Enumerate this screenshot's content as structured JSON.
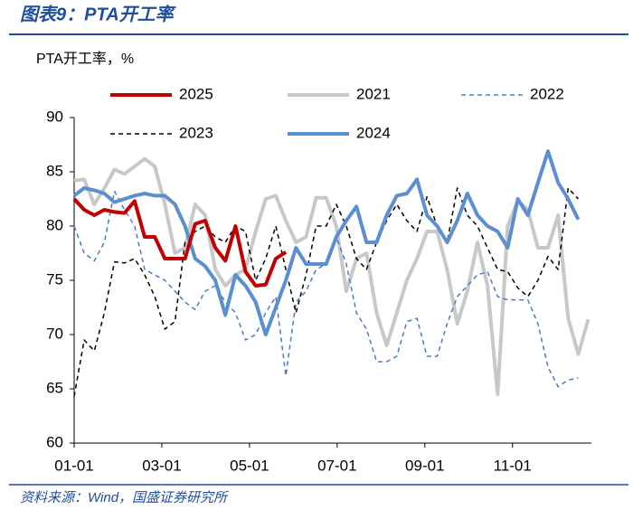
{
  "header_title": "图表9：PTA开工率",
  "source": "资料来源：Wind，国盛证券研究所",
  "chart_data": {
    "type": "line",
    "ylabel": "PTA开工率，%",
    "x": [
      0,
      0.23,
      0.46,
      0.69,
      0.92,
      1.15,
      1.38,
      1.61,
      1.84,
      2.07,
      2.3,
      2.53,
      2.76,
      2.99,
      3.22,
      3.45,
      3.68,
      3.91,
      4.14,
      4.37,
      4.6,
      4.83,
      5.06,
      5.29,
      5.52,
      5.75,
      5.98,
      6.21,
      6.44,
      6.67,
      6.9,
      7.13,
      7.36,
      7.59,
      7.82,
      8.05,
      8.28,
      8.51,
      8.74,
      8.97,
      9.2,
      9.43,
      9.66,
      9.89,
      10.12,
      10.35,
      10.58,
      10.81,
      11.04,
      11.27,
      11.5,
      11.73
    ],
    "xlim": [
      0,
      11.8
    ],
    "xticks": [
      {
        "value": 0,
        "label": "01-01"
      },
      {
        "value": 2,
        "label": "03-01"
      },
      {
        "value": 4,
        "label": "05-01"
      },
      {
        "value": 6,
        "label": "07-01"
      },
      {
        "value": 8,
        "label": "09-01"
      },
      {
        "value": 10,
        "label": "11-01"
      }
    ],
    "ylim": [
      60,
      90
    ],
    "yticks": [
      60,
      65,
      70,
      75,
      80,
      85,
      90
    ],
    "grid": false,
    "series": [
      {
        "name": "2021",
        "color": "#c8c8c8",
        "line_width": 4,
        "dashed": false,
        "values": [
          84.2,
          84.3,
          82,
          83.5,
          85.2,
          84.8,
          85.5,
          86.2,
          85.5,
          82,
          77.5,
          78,
          82,
          81,
          76,
          74.5,
          75.5,
          76,
          79.5,
          82.5,
          82.8,
          80.5,
          78.5,
          79,
          82.6,
          82.6,
          80,
          74,
          77,
          77.5,
          72,
          69,
          72,
          75,
          77,
          79.5,
          79.5,
          76,
          71,
          74,
          78.5,
          74.5,
          64.5,
          80,
          82.3,
          81.5,
          78,
          78,
          81,
          71.5,
          68.2,
          71.4
        ]
      },
      {
        "name": "2022",
        "color": "#4a7cc4",
        "line_width": 1.5,
        "dashed": true,
        "values": [
          80,
          77.5,
          76.8,
          78.5,
          83.2,
          81.5,
          80,
          76,
          75.5,
          75,
          74,
          73,
          72.3,
          74,
          74.5,
          73,
          72,
          69.5,
          70,
          72,
          73.5,
          66.2,
          73,
          74,
          76,
          76.5,
          79,
          76.5,
          72,
          70.5,
          67.5,
          67.5,
          68,
          71.2,
          71.5,
          68,
          68,
          71,
          73.5,
          74.5,
          75.5,
          75.8,
          73.5,
          73.2,
          73.2,
          73.2,
          71,
          67,
          65.2,
          65.8,
          66,
          null
        ]
      },
      {
        "name": "2023",
        "color": "#000000",
        "line_width": 1.5,
        "dashed": true,
        "values": [
          64.3,
          69.5,
          68.5,
          72,
          76.7,
          76.6,
          77,
          75.5,
          73.5,
          70.5,
          71.2,
          78.5,
          79.5,
          80,
          79,
          78.5,
          80,
          79.5,
          75,
          77,
          80,
          76,
          72,
          75.5,
          80,
          80,
          82,
          80,
          77,
          76,
          78.5,
          80.5,
          82,
          80.5,
          79.5,
          82.7,
          80,
          78.5,
          83.5,
          81,
          80,
          78,
          76,
          75.8,
          74.3,
          73.5,
          75,
          77.2,
          76,
          83.5,
          82.5,
          null
        ]
      },
      {
        "name": "2024",
        "color": "#5b8fd0",
        "line_width": 4,
        "dashed": false,
        "values": [
          82.8,
          83.5,
          83.3,
          83,
          82.2,
          82.5,
          82.8,
          83,
          82.8,
          82.8,
          82,
          80,
          77,
          76.3,
          75,
          71.8,
          75.5,
          74.5,
          73,
          70,
          72.5,
          75,
          78,
          76.5,
          76.5,
          76.5,
          79,
          80.5,
          81.8,
          78.5,
          78.5,
          81,
          82.8,
          83,
          84.3,
          81,
          80,
          78.5,
          80.5,
          83,
          81,
          80,
          79.5,
          78,
          82.5,
          81,
          84,
          86.9,
          84,
          82.5,
          80.6,
          null
        ]
      },
      {
        "name": "2025",
        "color": "#c00000",
        "line_width": 4,
        "dashed": false,
        "values": [
          82.5,
          81.5,
          81,
          81.5,
          81.3,
          81.2,
          82.3,
          79,
          79,
          77,
          77,
          77,
          80.2,
          80.5,
          78,
          76.8,
          80,
          75.8,
          74.5,
          74.6,
          77,
          77.6,
          null,
          null,
          null,
          null,
          null,
          null,
          null,
          null,
          null,
          null,
          null,
          null,
          null,
          null,
          null,
          null,
          null,
          null,
          null,
          null,
          null,
          null,
          null,
          null,
          null,
          null,
          null,
          null,
          null,
          null
        ]
      }
    ]
  }
}
